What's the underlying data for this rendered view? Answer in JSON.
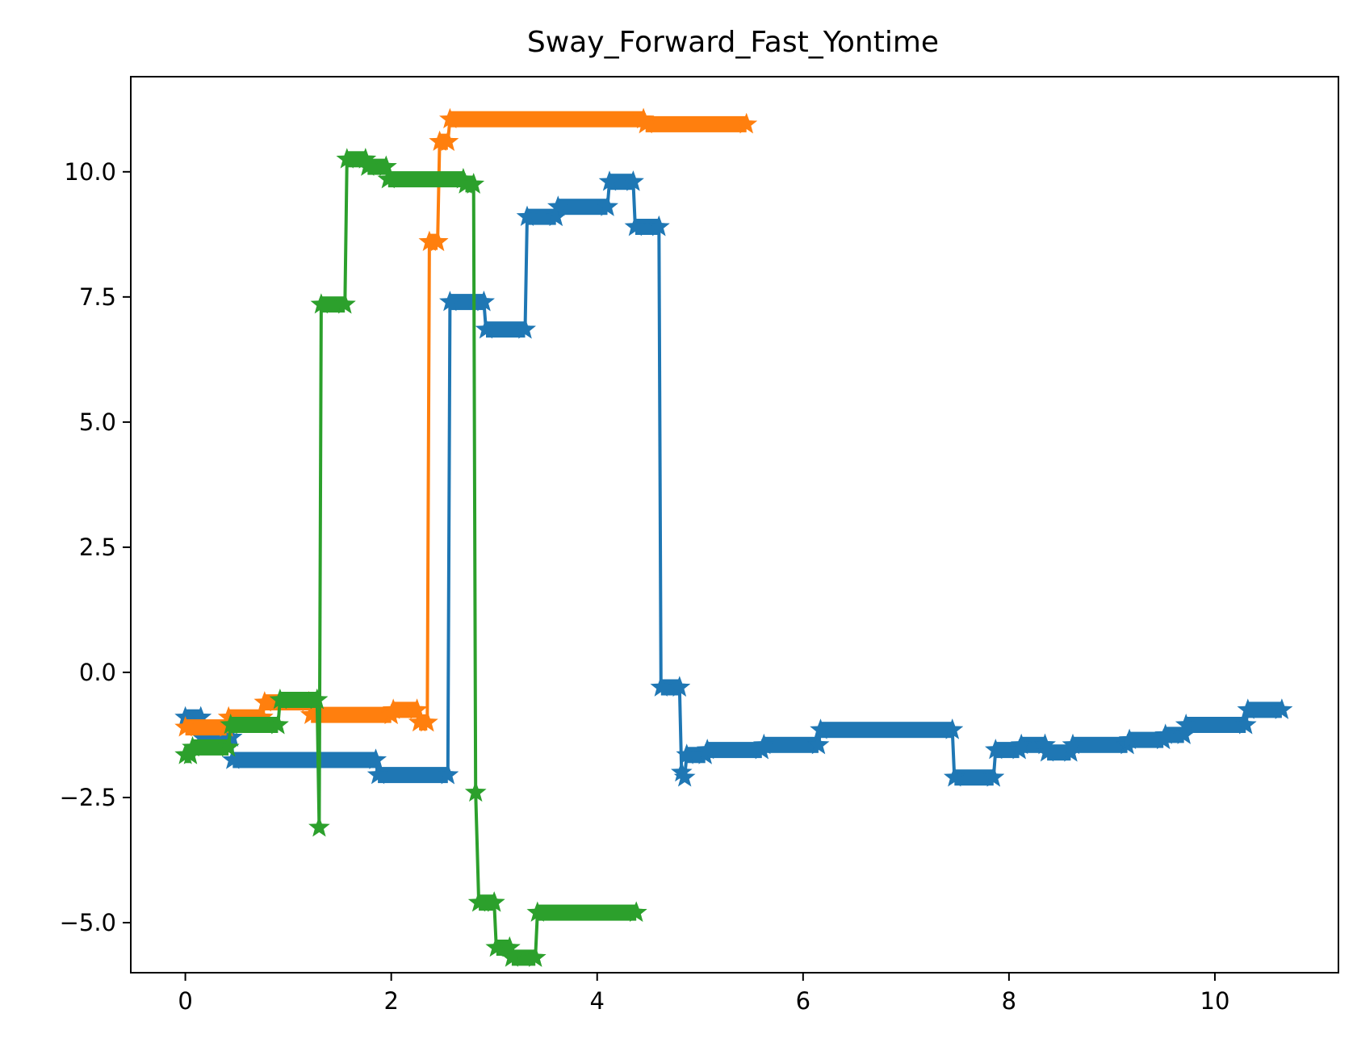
{
  "chart_data": {
    "type": "line",
    "title": "Sway_Forward_Fast_Yontime",
    "xlabel": "",
    "ylabel": "",
    "xlim": [
      -0.53,
      11.2
    ],
    "ylim": [
      -6.0,
      11.9
    ],
    "xticks": [
      0,
      2,
      4,
      6,
      8,
      10
    ],
    "xtick_labels": [
      "0",
      "2",
      "4",
      "6",
      "8",
      "10"
    ],
    "yticks": [
      -5.0,
      -2.5,
      0.0,
      2.5,
      5.0,
      7.5,
      10.0
    ],
    "ytick_labels": [
      "−5.0",
      "−2.5",
      "0.0",
      "2.5",
      "5.0",
      "7.5",
      "10.0"
    ],
    "grid": false,
    "legend": "none",
    "marker": "star",
    "series": [
      {
        "color": "#1f77b4",
        "points": [
          [
            0.0,
            -0.9
          ],
          [
            0.15,
            -0.9
          ],
          [
            0.16,
            -1.3
          ],
          [
            0.45,
            -1.3
          ],
          [
            0.46,
            -1.75
          ],
          [
            1.85,
            -1.75
          ],
          [
            1.87,
            -2.05
          ],
          [
            2.55,
            -2.05
          ],
          [
            2.57,
            7.4
          ],
          [
            2.9,
            7.4
          ],
          [
            2.92,
            6.85
          ],
          [
            3.3,
            6.85
          ],
          [
            3.32,
            9.1
          ],
          [
            3.6,
            9.1
          ],
          [
            3.62,
            9.3
          ],
          [
            4.1,
            9.3
          ],
          [
            4.12,
            9.8
          ],
          [
            4.35,
            9.8
          ],
          [
            4.37,
            8.9
          ],
          [
            4.6,
            8.9
          ],
          [
            4.62,
            -0.3
          ],
          [
            4.8,
            -0.3
          ],
          [
            4.82,
            -2.0
          ],
          [
            4.85,
            -2.1
          ],
          [
            4.87,
            -1.65
          ],
          [
            5.05,
            -1.65
          ],
          [
            5.07,
            -1.55
          ],
          [
            5.6,
            -1.55
          ],
          [
            5.62,
            -1.45
          ],
          [
            6.15,
            -1.45
          ],
          [
            6.17,
            -1.15
          ],
          [
            7.45,
            -1.15
          ],
          [
            7.47,
            -2.1
          ],
          [
            7.85,
            -2.1
          ],
          [
            7.87,
            -1.55
          ],
          [
            8.1,
            -1.55
          ],
          [
            8.12,
            -1.45
          ],
          [
            8.35,
            -1.45
          ],
          [
            8.37,
            -1.6
          ],
          [
            8.6,
            -1.6
          ],
          [
            8.62,
            -1.45
          ],
          [
            9.15,
            -1.45
          ],
          [
            9.17,
            -1.35
          ],
          [
            9.5,
            -1.35
          ],
          [
            9.52,
            -1.25
          ],
          [
            9.7,
            -1.25
          ],
          [
            9.72,
            -1.05
          ],
          [
            10.3,
            -1.05
          ],
          [
            10.32,
            -0.75
          ],
          [
            10.65,
            -0.75
          ]
        ]
      },
      {
        "color": "#ff7f0e",
        "points": [
          [
            0.0,
            -1.1
          ],
          [
            0.4,
            -1.1
          ],
          [
            0.42,
            -0.9
          ],
          [
            0.75,
            -0.9
          ],
          [
            0.77,
            -0.6
          ],
          [
            1.2,
            -0.6
          ],
          [
            1.22,
            -0.85
          ],
          [
            2.0,
            -0.85
          ],
          [
            2.02,
            -0.75
          ],
          [
            2.25,
            -0.75
          ],
          [
            2.27,
            -1.0
          ],
          [
            2.35,
            -1.0
          ],
          [
            2.37,
            8.6
          ],
          [
            2.45,
            8.6
          ],
          [
            2.47,
            10.6
          ],
          [
            2.55,
            10.6
          ],
          [
            2.57,
            11.05
          ],
          [
            4.45,
            11.05
          ],
          [
            4.47,
            10.95
          ],
          [
            5.45,
            10.95
          ]
        ]
      },
      {
        "color": "#2ca02c",
        "points": [
          [
            0.0,
            -1.65
          ],
          [
            0.05,
            -1.65
          ],
          [
            0.07,
            -1.5
          ],
          [
            0.42,
            -1.5
          ],
          [
            0.44,
            -1.05
          ],
          [
            0.9,
            -1.05
          ],
          [
            0.92,
            -0.55
          ],
          [
            1.28,
            -0.55
          ],
          [
            1.3,
            -3.1
          ],
          [
            1.32,
            7.35
          ],
          [
            1.55,
            7.35
          ],
          [
            1.57,
            10.25
          ],
          [
            1.75,
            10.25
          ],
          [
            1.77,
            10.1
          ],
          [
            1.95,
            10.1
          ],
          [
            1.97,
            9.85
          ],
          [
            2.7,
            9.85
          ],
          [
            2.72,
            9.75
          ],
          [
            2.8,
            9.75
          ],
          [
            2.82,
            -2.4
          ],
          [
            2.85,
            -4.6
          ],
          [
            3.0,
            -4.6
          ],
          [
            3.02,
            -5.5
          ],
          [
            3.15,
            -5.5
          ],
          [
            3.17,
            -5.7
          ],
          [
            3.4,
            -5.7
          ],
          [
            3.42,
            -4.8
          ],
          [
            4.38,
            -4.8
          ]
        ]
      }
    ]
  }
}
